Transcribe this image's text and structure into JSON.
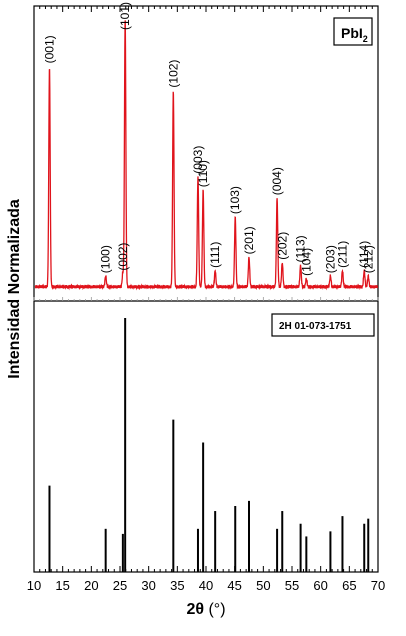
{
  "chart_data": [
    {
      "type": "line",
      "panel": "top",
      "legend_label": {
        "main": "PbI",
        "sub": "2"
      },
      "legend_position": "top-right",
      "color": "#e0141c",
      "xlim": [
        10,
        70
      ],
      "peaks": [
        {
          "x": 12.7,
          "h": 0.82,
          "label": "(001)"
        },
        {
          "x": 22.5,
          "h": 0.04,
          "label": "(100)"
        },
        {
          "x": 25.5,
          "h": 0.05,
          "label": "(002)"
        },
        {
          "x": 25.9,
          "h": 1.0,
          "label": "(101)"
        },
        {
          "x": 34.3,
          "h": 0.73,
          "label": "(102)"
        },
        {
          "x": 38.6,
          "h": 0.41,
          "label": "(003)"
        },
        {
          "x": 39.5,
          "h": 0.36,
          "label": "(110)"
        },
        {
          "x": 41.6,
          "h": 0.06,
          "label": "(111)"
        },
        {
          "x": 45.1,
          "h": 0.26,
          "label": "(103)"
        },
        {
          "x": 47.5,
          "h": 0.11,
          "label": "(201)"
        },
        {
          "x": 52.4,
          "h": 0.33,
          "label": "(004)"
        },
        {
          "x": 53.3,
          "h": 0.09,
          "label": "(202)"
        },
        {
          "x": 56.5,
          "h": 0.08,
          "label": "(113)"
        },
        {
          "x": 57.5,
          "h": 0.03,
          "label": "(104)"
        },
        {
          "x": 61.7,
          "h": 0.04,
          "label": "(203)"
        },
        {
          "x": 63.8,
          "h": 0.06,
          "label": "(211)"
        },
        {
          "x": 67.6,
          "h": 0.06,
          "label": "(114)"
        },
        {
          "x": 68.3,
          "h": 0.04,
          "label": "(212)"
        }
      ]
    },
    {
      "type": "bar",
      "panel": "bottom",
      "legend_label": "2H  01-073-1751",
      "legend_position": "top-right",
      "color": "#000000",
      "xlim": [
        10,
        70
      ],
      "lines": [
        {
          "x": 12.7,
          "h": 0.34
        },
        {
          "x": 22.5,
          "h": 0.17
        },
        {
          "x": 25.5,
          "h": 0.15
        },
        {
          "x": 25.9,
          "h": 1.0
        },
        {
          "x": 34.3,
          "h": 0.6
        },
        {
          "x": 38.6,
          "h": 0.17
        },
        {
          "x": 39.5,
          "h": 0.51
        },
        {
          "x": 41.6,
          "h": 0.24
        },
        {
          "x": 45.1,
          "h": 0.26
        },
        {
          "x": 47.5,
          "h": 0.28
        },
        {
          "x": 52.4,
          "h": 0.17
        },
        {
          "x": 53.3,
          "h": 0.24
        },
        {
          "x": 56.5,
          "h": 0.19
        },
        {
          "x": 57.5,
          "h": 0.14
        },
        {
          "x": 61.7,
          "h": 0.16
        },
        {
          "x": 63.8,
          "h": 0.22
        },
        {
          "x": 67.6,
          "h": 0.19
        },
        {
          "x": 68.3,
          "h": 0.21
        }
      ]
    }
  ],
  "axes": {
    "ylabel": "Intensidad Normalizada",
    "xlabel_main": "2θ",
    "xlabel_unit": " (°)",
    "xticks": [
      "10",
      "15",
      "20",
      "25",
      "30",
      "35",
      "40",
      "45",
      "50",
      "55",
      "60",
      "65",
      "70"
    ]
  }
}
